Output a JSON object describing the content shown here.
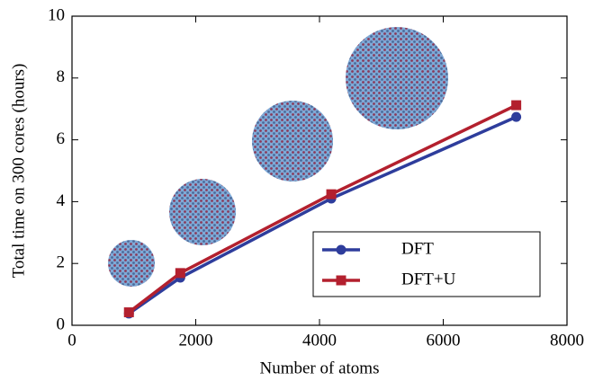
{
  "chart_data": {
    "type": "line",
    "xlabel": "Number of atoms",
    "ylabel": "Total time on 300 cores (hours)",
    "x": [
      920,
      1750,
      4190,
      7180
    ],
    "series": [
      {
        "name": "DFT",
        "color": "#2e3d9c",
        "marker": "circle",
        "values": [
          0.38,
          1.54,
          4.1,
          6.74
        ]
      },
      {
        "name": "DFT+U",
        "color": "#b3202e",
        "marker": "square",
        "values": [
          0.42,
          1.69,
          4.24,
          7.12
        ]
      }
    ],
    "xlim": [
      0,
      8000
    ],
    "xticks": [
      0,
      2000,
      4000,
      6000,
      8000
    ],
    "ylim": [
      0,
      10
    ],
    "yticks": [
      0,
      2,
      4,
      6,
      8,
      10
    ],
    "legend": "lower right"
  }
}
